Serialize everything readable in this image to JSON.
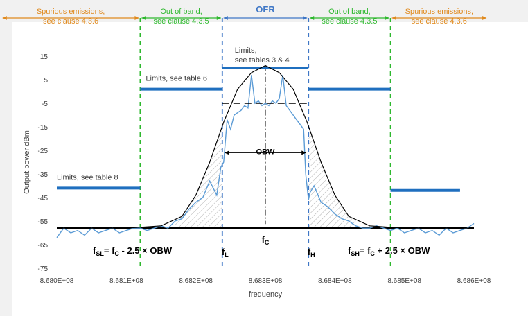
{
  "chart_data": {
    "type": "line",
    "xlabel": "frequency",
    "ylabel": "Output power dBm",
    "xlim": [
      868000000,
      868600000
    ],
    "ylim": [
      -75,
      15
    ],
    "x_ticks": [
      868000000,
      868100000,
      868200000,
      868300000,
      868400000,
      868500000,
      868600000
    ],
    "x_tick_labels": [
      "8.680E+08",
      "8.681E+08",
      "8.682E+08",
      "8.683E+08",
      "8.684E+08",
      "8.685E+08",
      "8.686E+08"
    ],
    "y_ticks": [
      15,
      5,
      -5,
      -15,
      -25,
      -35,
      -45,
      -55,
      -65,
      -75
    ],
    "y_tick_labels": [
      "15",
      "5",
      "-5",
      "-15",
      "-25",
      "-35",
      "-45",
      "-55",
      "-65",
      "-75"
    ],
    "grid": false,
    "colors": {
      "spectrum": "#5b9bd5",
      "limits": "#1f6fbf",
      "envelope": "#000000",
      "green": "#2eb82e",
      "orange": "#e08a1e",
      "ofr": "#3f77c6"
    },
    "regions": [
      {
        "label": "Spurious emissions,\nsee clause 4.3.6",
        "color": "#e08a1e",
        "x_start": 867920000,
        "x_end": 868120000
      },
      {
        "label": "Out of band,\nsee clause 4.3.5",
        "color": "#2eb82e",
        "x_start": 868120000,
        "x_end": 868238000
      },
      {
        "label": "OFR",
        "color": "#3f77c6",
        "x_start": 868238000,
        "x_end": 868362000
      },
      {
        "label": "Out of band,\nsee clause 4.3.5",
        "color": "#2eb82e",
        "x_start": 868362000,
        "x_end": 868480000
      },
      {
        "label": "Spurious emissions,\nsee clause 4.3.6",
        "color": "#e08a1e",
        "x_start": 868480000,
        "x_end": 868620000
      }
    ],
    "limit_lines": [
      {
        "label": "Limits, see table 8",
        "level": -41,
        "x_start": 868000000,
        "x_end": 868120000
      },
      {
        "label": "Limits, see table 6",
        "level": 1,
        "x_start": 868120000,
        "x_end": 868238000
      },
      {
        "label": "Limits,\nsee tables 3 & 4",
        "level": 10,
        "x_start": 868238000,
        "x_end": 868362000
      },
      {
        "label": "",
        "level": 1,
        "x_start": 868362000,
        "x_end": 868480000
      },
      {
        "label": "",
        "level": -42,
        "x_start": 868480000,
        "x_end": 868580000
      }
    ],
    "noise_floor": -58,
    "center_frequency": 868300000,
    "annotations": {
      "obw": "OBW",
      "fc": "f",
      "fc_sub": "C",
      "fl": "f",
      "fl_sub": "L",
      "fh": "f",
      "fh_sub": "H",
      "fsl_a": "f",
      "fsl_sub": "SL",
      "fsl_b": "= f",
      "fsl_c_sub": "C",
      "fsl_rest": "- 2.5 × OBW",
      "fsh_a": "f",
      "fsh_sub": "SH",
      "fsh_b": "= f",
      "fsh_c_sub": "C",
      "fsh_rest": "+ 2.5 × OBW"
    },
    "markers": {
      "fsl": 868120000,
      "fl": 868238000,
      "fh": 868362000,
      "fsh": 868480000,
      "obw_level": -5
    },
    "envelope": {
      "x": [
        868000000,
        868100000,
        868150000,
        868180000,
        868200000,
        868220000,
        868240000,
        868260000,
        868280000,
        868300000,
        868320000,
        868340000,
        868360000,
        868380000,
        868400000,
        868420000,
        868450000,
        868500000,
        868600000
      ],
      "y": [
        -58,
        -58,
        -57,
        -53,
        -44,
        -30,
        -13,
        1,
        8,
        11,
        8,
        1,
        -13,
        -30,
        -44,
        -53,
        -57,
        -58,
        -58
      ]
    },
    "series": [
      {
        "name": "",
        "x": [
          868000000,
          868010000,
          868020000,
          868030000,
          868040000,
          868050000,
          868060000,
          868070000,
          868080000,
          868090000,
          868100000,
          868110000,
          868120000,
          868130000,
          868140000,
          868150000,
          868160000,
          868170000,
          868180000,
          868190000,
          868200000,
          868210000,
          868220000,
          868230000,
          868236000,
          868240000,
          868245000,
          868250000,
          868255000,
          868260000,
          868265000,
          868270000,
          868275000,
          868280000,
          868285000,
          868290000,
          868295000,
          868300000,
          868305000,
          868310000,
          868315000,
          868320000,
          868325000,
          868330000,
          868335000,
          868340000,
          868345000,
          868350000,
          868355000,
          868358000,
          868362000,
          868364000,
          868370000,
          868380000,
          868390000,
          868400000,
          868410000,
          868420000,
          868430000,
          868440000,
          868450000,
          868460000,
          868470000,
          868480000,
          868490000,
          868500000,
          868510000,
          868520000,
          868530000,
          868540000,
          868550000,
          868560000,
          868570000,
          868580000,
          868590000,
          868600000
        ],
        "y": [
          -62,
          -58,
          -60,
          -59,
          -61,
          -58,
          -60,
          -59,
          -58,
          -60,
          -59,
          -58,
          -58,
          -59,
          -58,
          -57,
          -58,
          -55,
          -54,
          -50,
          -47,
          -45,
          -38,
          -44,
          -32,
          -30,
          -12,
          -16,
          -10,
          -9,
          -8,
          -6,
          -7,
          7,
          -5,
          -4,
          -6,
          -5,
          -6,
          -4,
          -5,
          -3,
          7,
          -6,
          -8,
          -10,
          -12,
          -14,
          -16,
          -35,
          -46,
          -43,
          -40,
          -47,
          -49,
          -52,
          -54,
          -55,
          -57,
          -58,
          -58,
          -57,
          -58,
          -59,
          -58,
          -60,
          -59,
          -58,
          -60,
          -59,
          -61,
          -58,
          -60,
          -59,
          -58,
          -56
        ]
      }
    ]
  }
}
